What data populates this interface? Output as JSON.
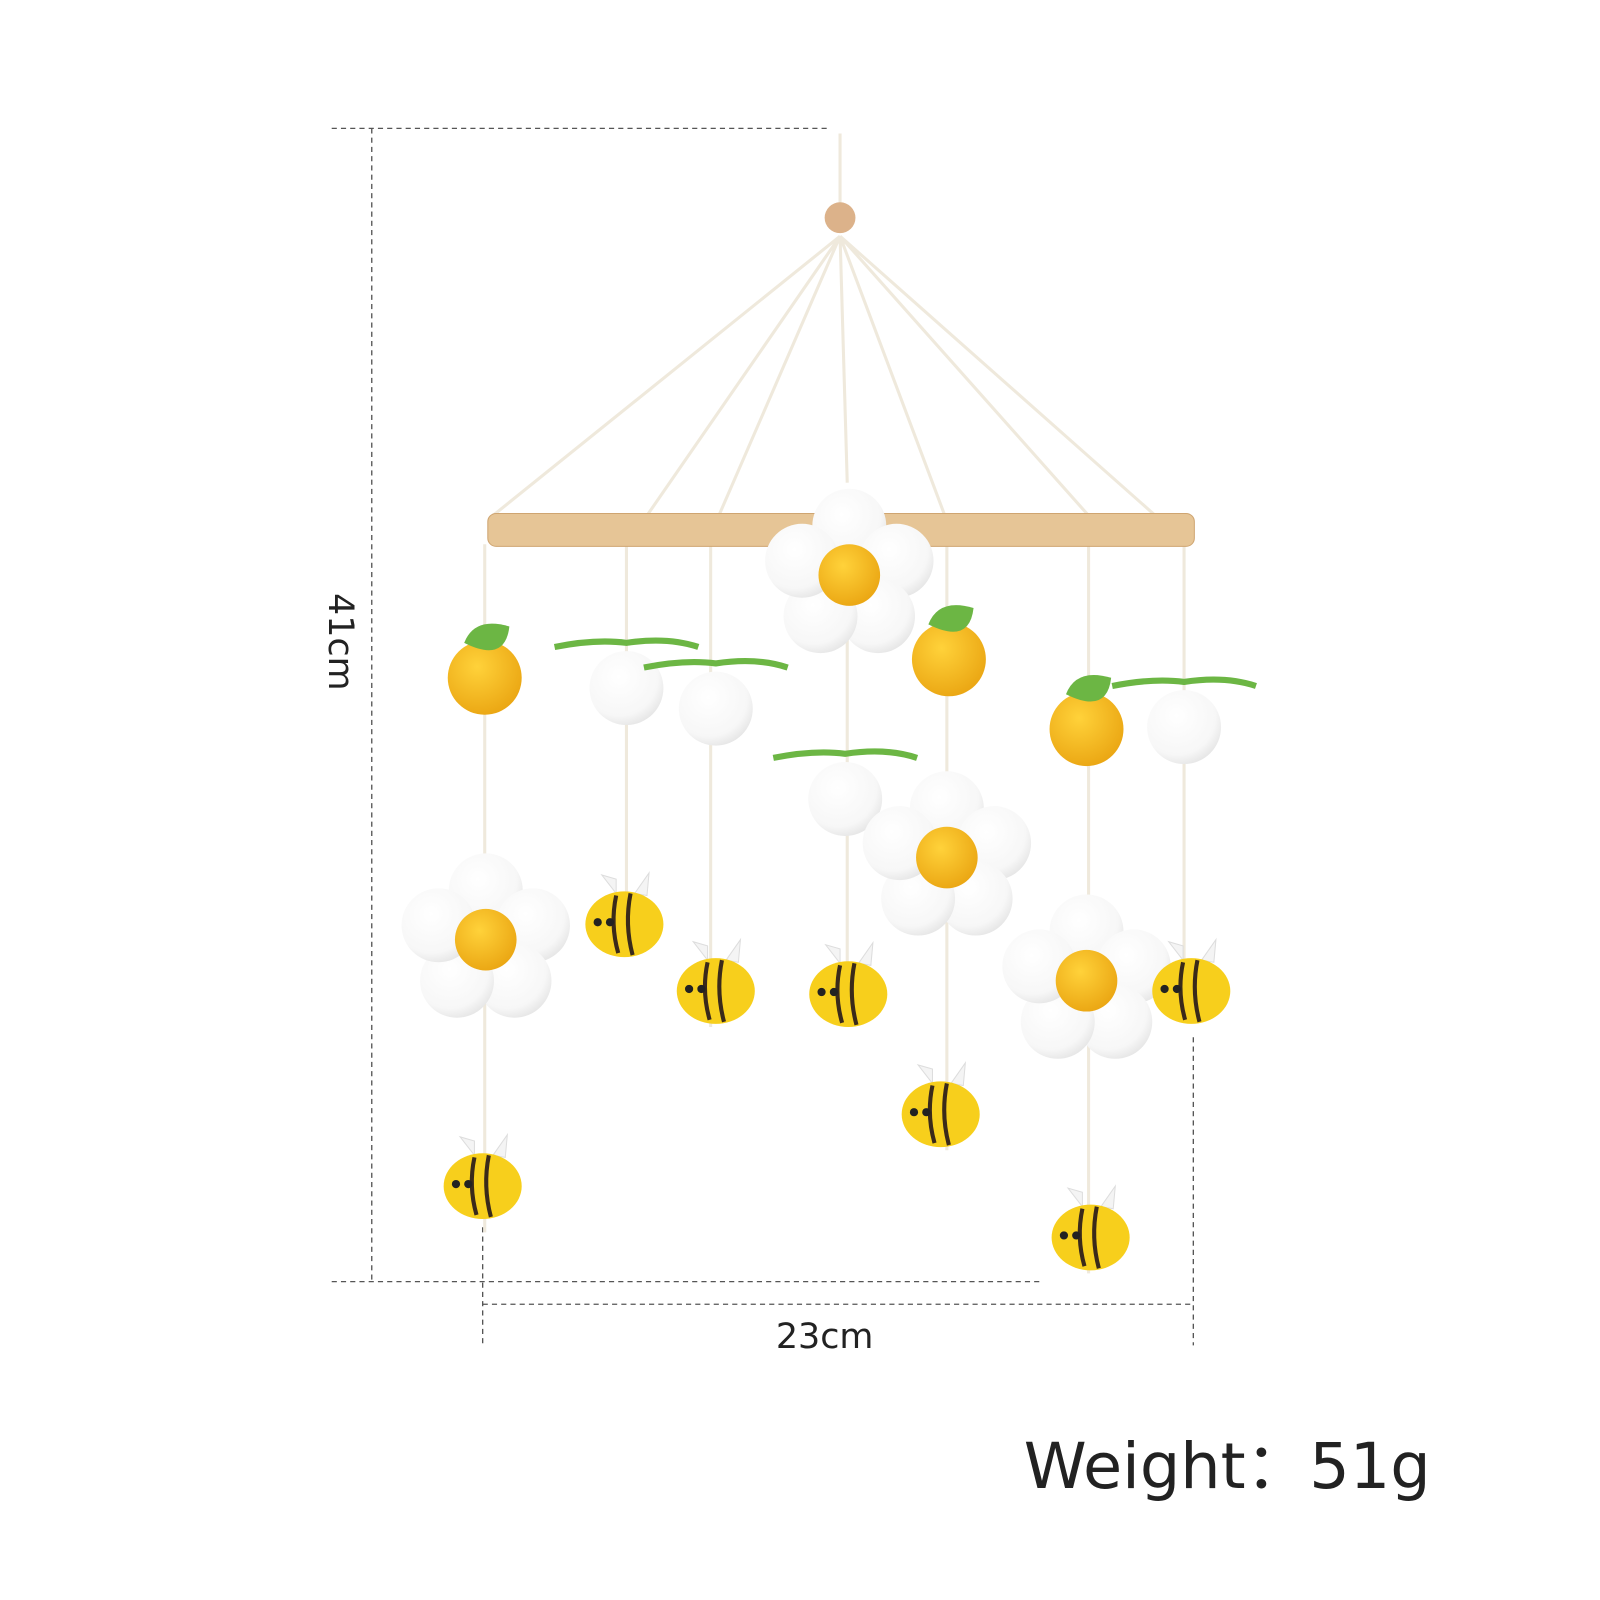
{
  "dimensions": {
    "height": "41cm",
    "width": "23cm"
  },
  "weight": "Weight：51g"
}
